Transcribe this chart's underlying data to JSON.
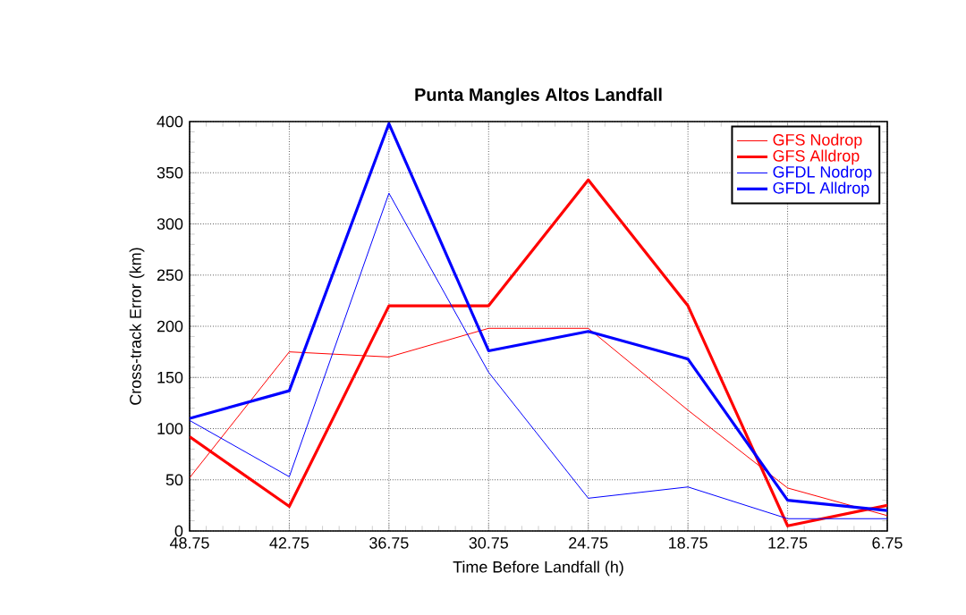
{
  "chart_data": {
    "type": "line",
    "title": "Punta Mangles Altos Landfall",
    "xlabel": "Time Before Landfall (h)",
    "ylabel": "Cross-track Error (km)",
    "x": [
      48.75,
      42.75,
      36.75,
      30.75,
      24.75,
      18.75,
      12.75,
      6.75
    ],
    "xlim": [
      48.75,
      6.75
    ],
    "xticks": [
      48.75,
      42.75,
      36.75,
      30.75,
      24.75,
      18.75,
      12.75,
      6.75
    ],
    "ylim": [
      0,
      400
    ],
    "yticks": [
      0,
      50,
      100,
      150,
      200,
      250,
      300,
      350,
      400
    ],
    "grid": true,
    "legend": "top right",
    "line_style": "solid",
    "marker": "none",
    "series": [
      {
        "name": "GFS Nodrop",
        "color": "#ff0000",
        "values": [
          52,
          175,
          170,
          198,
          198,
          118,
          42,
          15
        ]
      },
      {
        "name": "GFS Alldrop",
        "color": "#ff0000",
        "values": [
          92,
          24,
          220,
          220,
          343,
          220,
          5,
          25
        ]
      },
      {
        "name": "GFDL Nodrop",
        "color": "#0000ff",
        "values": [
          108,
          53,
          330,
          155,
          32,
          43,
          12,
          12
        ]
      },
      {
        "name": "GFDL Alldrop",
        "color": "#0000ff",
        "values": [
          110,
          137,
          398,
          176,
          195,
          168,
          30,
          20
        ]
      }
    ]
  }
}
